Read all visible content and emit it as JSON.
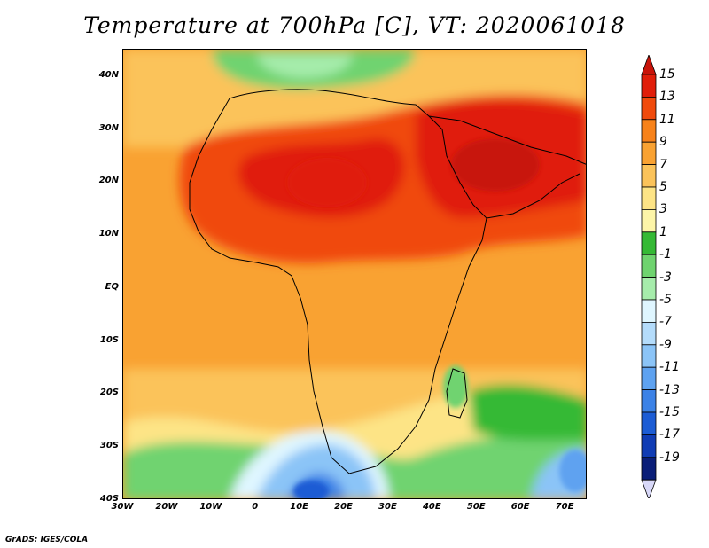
{
  "title": "Temperature at 700hPa [C], VT: 2020061018",
  "credit": "GrADS: IGES/COLA",
  "map": {
    "lat_ticks": [
      "40N",
      "30N",
      "20N",
      "10N",
      "EQ",
      "10S",
      "20S",
      "30S",
      "40S"
    ],
    "lat_values": [
      40,
      30,
      20,
      10,
      0,
      -10,
      -20,
      -30,
      -40
    ],
    "lon_ticks": [
      "30W",
      "20W",
      "10W",
      "0",
      "10E",
      "20E",
      "30E",
      "40E",
      "50E",
      "60E",
      "70E"
    ],
    "lon_values": [
      -30,
      -20,
      -10,
      0,
      10,
      20,
      30,
      40,
      50,
      60,
      70
    ],
    "lon_range": [
      -30,
      75
    ],
    "lat_range": [
      -40,
      45
    ]
  },
  "colorbar": {
    "labels": [
      "15",
      "13",
      "11",
      "9",
      "7",
      "5",
      "3",
      "1",
      "-1",
      "-3",
      "-5",
      "-7",
      "-9",
      "-11",
      "-13",
      "-15",
      "-17",
      "-19"
    ],
    "colors": [
      "#e01e0a",
      "#f04a0c",
      "#f7821a",
      "#f9a232",
      "#fbc35a",
      "#fde486",
      "#fdf5a8",
      "#35b935",
      "#6fd36f",
      "#a6ecab",
      "#dff6ff",
      "#b4dcfb",
      "#8bc4f7",
      "#5ea2f0",
      "#3c82e6",
      "#1c5cd4",
      "#103cb4",
      "#0a1e78"
    ],
    "top_triangle_color": "#c8140a",
    "bottom_triangle_color": "#d8d8f8"
  }
}
